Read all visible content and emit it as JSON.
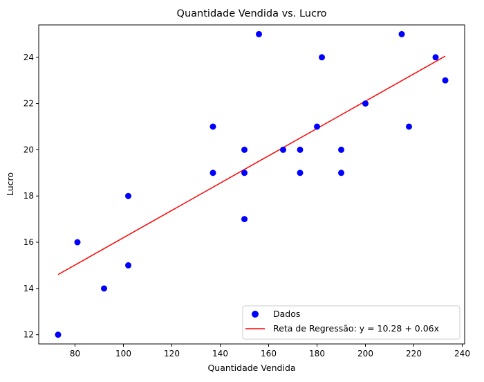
{
  "chart_data": {
    "type": "scatter",
    "title": "Quantidade Vendida vs. Lucro",
    "xlabel": "Quantidade Vendida",
    "ylabel": "Lucro",
    "xlim": [
      65,
      241
    ],
    "ylim": [
      11.6,
      25.4
    ],
    "xticks": [
      80,
      100,
      120,
      140,
      160,
      180,
      200,
      220,
      240
    ],
    "yticks": [
      12,
      14,
      16,
      18,
      20,
      22,
      24
    ],
    "grid": false,
    "legend_position": "lower-right",
    "series": [
      {
        "name": "Dados",
        "kind": "scatter",
        "color": "#0000ff",
        "points": [
          [
            73,
            12
          ],
          [
            81,
            16
          ],
          [
            92,
            14
          ],
          [
            102,
            18
          ],
          [
            102,
            15
          ],
          [
            137,
            21
          ],
          [
            137,
            19
          ],
          [
            150,
            20
          ],
          [
            150,
            19
          ],
          [
            150,
            17
          ],
          [
            156,
            25
          ],
          [
            166,
            20
          ],
          [
            173,
            20
          ],
          [
            173,
            19
          ],
          [
            180,
            21
          ],
          [
            182,
            24
          ],
          [
            190,
            20
          ],
          [
            190,
            19
          ],
          [
            200,
            22
          ],
          [
            215,
            25
          ],
          [
            218,
            21
          ],
          [
            229,
            24
          ],
          [
            233,
            23
          ]
        ]
      },
      {
        "name": "Reta de Regressão: y = 10.28 + 0.06x",
        "kind": "line",
        "color": "#ff0000",
        "x_range": [
          73,
          233
        ],
        "y_range": [
          14.6,
          24.05
        ]
      }
    ]
  }
}
